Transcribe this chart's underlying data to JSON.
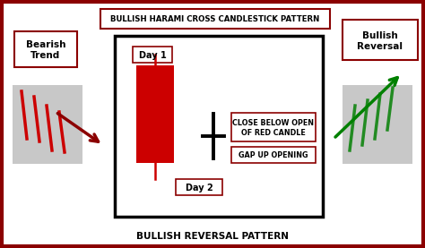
{
  "bg_color": "#ffffff",
  "title_top": "BULLISH HARAMI CROSS CANDLESTICK PATTERN",
  "title_bottom": "BULLISH REVERSAL PATTERN",
  "label_bearish": "Bearish\nTrend",
  "label_bullish": "Bullish\nReversal",
  "day1_label": "Day 1",
  "day2_label": "Day 2",
  "note1": "CLOSE BELOW OPEN\nOF RED CANDLE",
  "note2": "GAP UP OPENING",
  "red_candle_color": "#cc0000",
  "green_candle_color": "#228B22",
  "dark_red": "#8B0000",
  "black": "#000000",
  "gray_box": "#c8c8c8"
}
